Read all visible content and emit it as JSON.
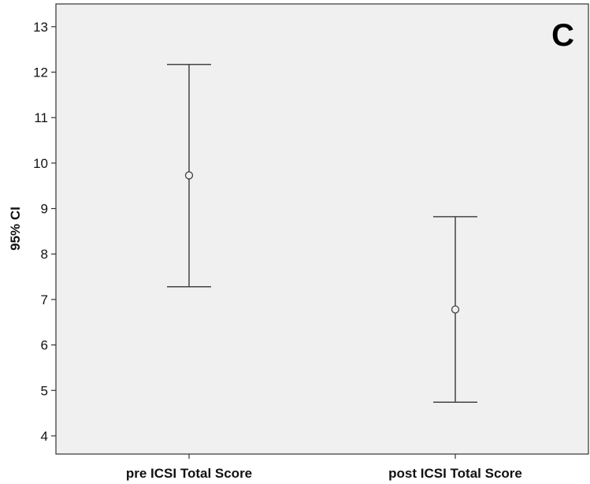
{
  "chart_data": {
    "type": "errorbar",
    "panel_label": "C",
    "ylabel": "95% CI",
    "xlabel": "",
    "ylim": [
      3.6,
      13.5
    ],
    "yticks": [
      4,
      5,
      6,
      7,
      8,
      9,
      10,
      11,
      12,
      13
    ],
    "categories": [
      "pre ICSI Total Score",
      "post ICSI Total Score"
    ],
    "series": [
      {
        "means": [
          9.73,
          6.78
        ],
        "lower": [
          7.28,
          4.74
        ],
        "upper": [
          12.17,
          8.82
        ]
      }
    ],
    "grid": false,
    "colors": {
      "plot_background": "#f0f0f0",
      "marks": "#444444"
    }
  }
}
